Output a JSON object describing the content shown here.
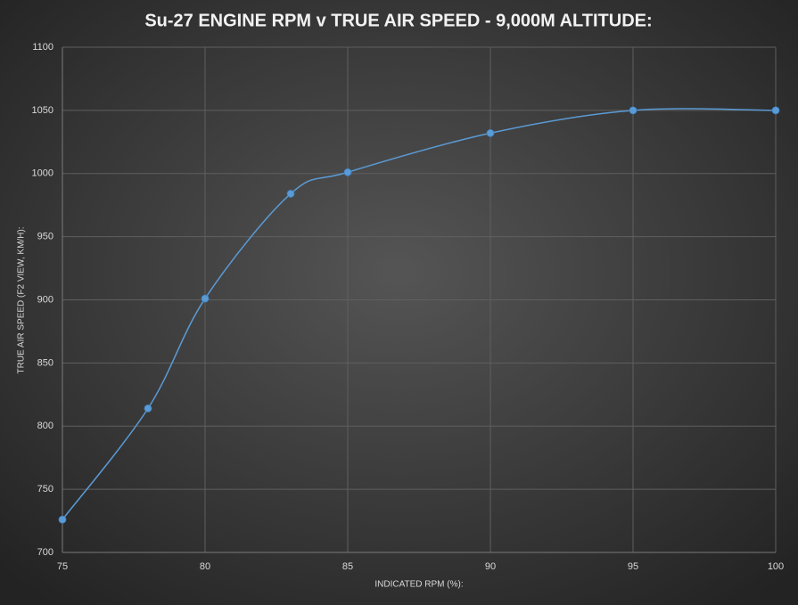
{
  "chart_data": {
    "type": "line",
    "title": "Su-27 ENGINE RPM v TRUE AIR SPEED - 9,000M ALTITUDE:",
    "x_label": "INDICATED RPM (%):",
    "y_label": "TRUE AIR SPEED (F2 VIEW, KM/H):",
    "x": [
      75,
      78,
      80,
      83,
      85,
      90,
      95,
      100
    ],
    "series": [
      {
        "color": "#5b9bd5",
        "values": [
          726,
          814,
          901,
          984,
          1001,
          1032,
          1050,
          1050
        ]
      }
    ],
    "xlim": [
      75,
      100
    ],
    "xticks": [
      75,
      80,
      85,
      90,
      95,
      100
    ],
    "ylim": [
      700,
      1100
    ],
    "yticks": [
      700,
      750,
      800,
      850,
      900,
      950,
      1000,
      1050,
      1100
    ],
    "grid": true,
    "smooth": true
  }
}
